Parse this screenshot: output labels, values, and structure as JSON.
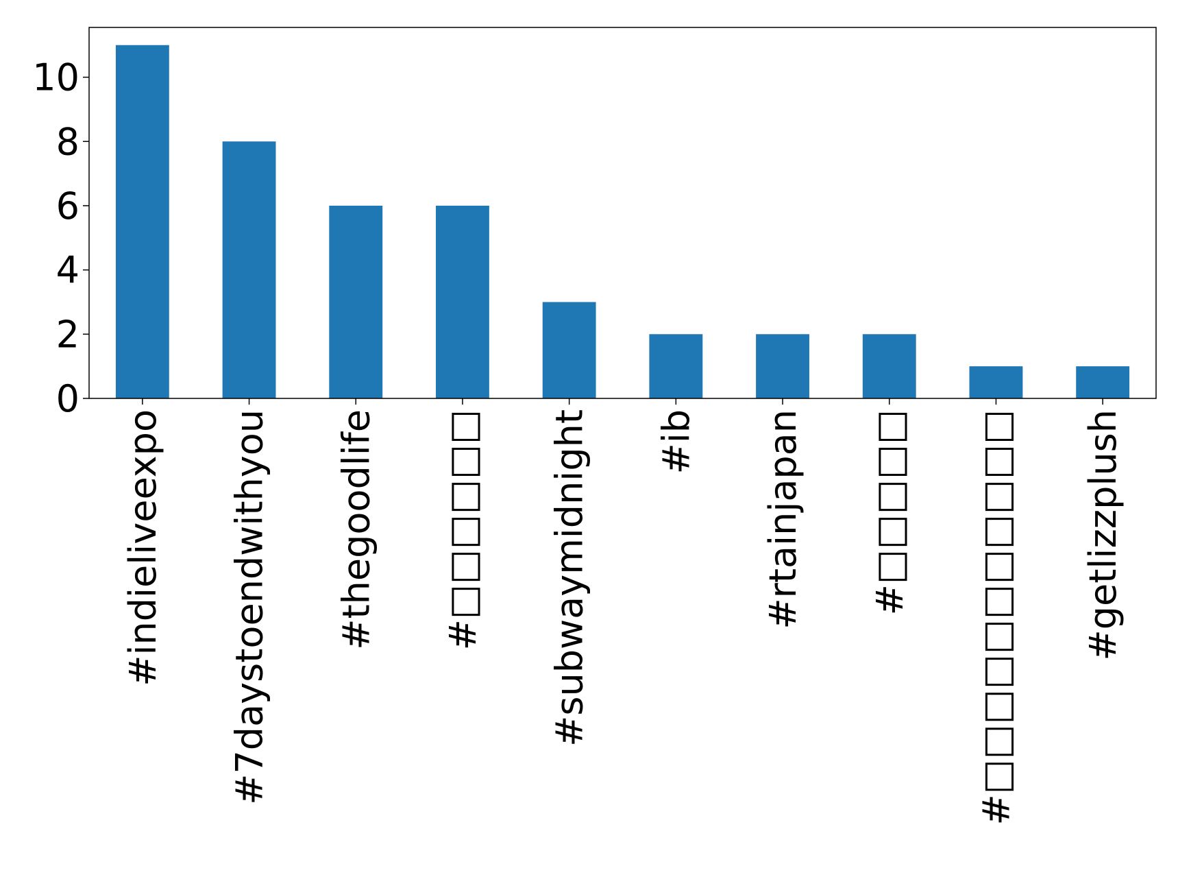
{
  "chart_data": {
    "type": "bar",
    "categories": [
      "#indieliveexpo",
      "#7daystoendwithyou",
      "#thegoodlife",
      "#□□□□□□",
      "#subwaymidnight",
      "#ib",
      "#rtainjapan",
      "#□□□□□",
      "#□□□□□□□□□□□",
      "#getlizzplush"
    ],
    "values": [
      11,
      8,
      6,
      6,
      3,
      2,
      2,
      2,
      1,
      1
    ],
    "color": "#1f77b4",
    "ylim": [
      0,
      11.55
    ],
    "yticks": [
      0,
      2,
      4,
      6,
      8,
      10
    ],
    "grid": false
  }
}
